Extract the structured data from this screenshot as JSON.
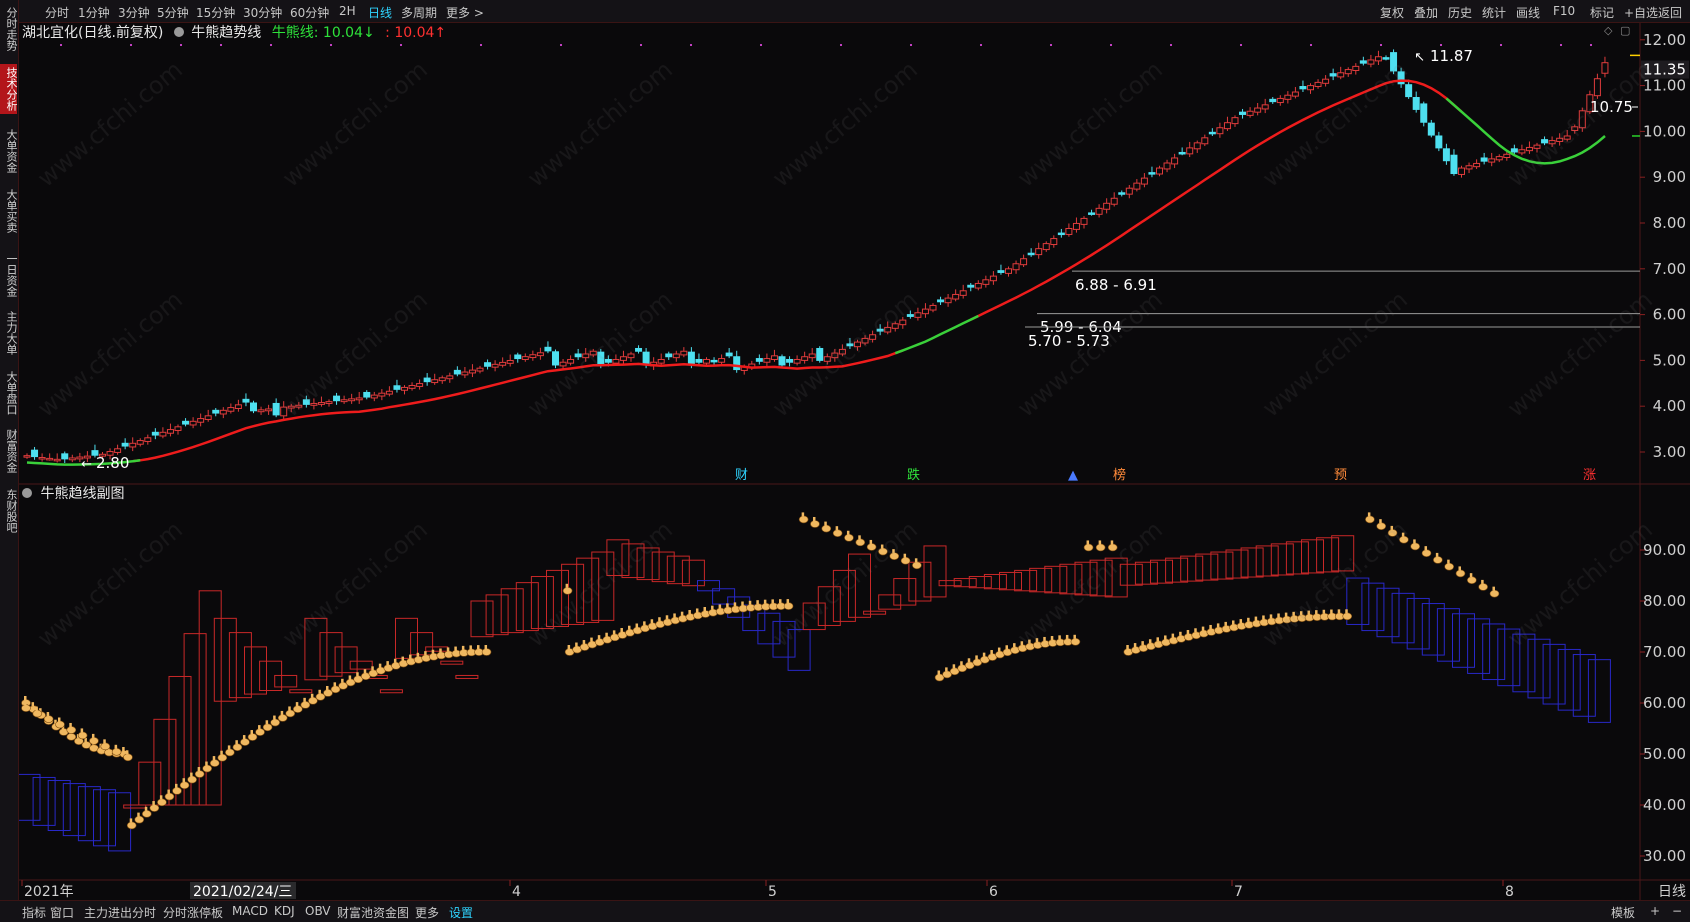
{
  "top_toolbar": {
    "periods": [
      "分时",
      "1分钟",
      "3分钟",
      "5分钟",
      "15分钟",
      "30分钟",
      "60分钟",
      "2H",
      "日线",
      "多周期",
      "更多 >"
    ],
    "active_period": "日线",
    "tools": [
      "复权",
      "叠加",
      "历史",
      "统计",
      "画线",
      "F10",
      "+自选",
      "返回"
    ],
    "mark_label": "标记"
  },
  "left_tabs": [
    "分时走势",
    "技术分析",
    "大单资金",
    "大单买卖",
    "一日资金",
    "主力大单",
    "大单盘口",
    "财富资金",
    "东财股吧"
  ],
  "main_chart": {
    "stock_title": "湖北宜化(日线.前复权)",
    "indicator_name": "牛熊趋势线",
    "bull_label": "牛熊线:",
    "bull_value": "10.04↓",
    "bear_value": ": 10.04↑",
    "price_axis": [
      "12.00",
      "11.00",
      "10.00",
      "9.00",
      "8.00",
      "7.00",
      "6.00",
      "5.00",
      "4.00",
      "3.00"
    ],
    "current_price": "11.35",
    "annotations": {
      "high": "11.87",
      "low": "2.80",
      "level_1075": "10.75",
      "gap1": "6.88 - 6.91",
      "gap2": "5.99 - 6.04",
      "gap3": "5.70 - 5.73"
    },
    "event_markers": [
      "财",
      "跌",
      "▲",
      "榜",
      "预",
      "涨"
    ]
  },
  "sub_chart": {
    "title": "牛熊趋线副图",
    "axis": [
      "90.00",
      "80.00",
      "70.00",
      "60.00",
      "50.00",
      "40.00",
      "30.00"
    ]
  },
  "date_axis": {
    "labels": [
      "2021年",
      "4",
      "5",
      "6",
      "7",
      "8"
    ],
    "cursor_date": "2021/02/24/三",
    "period": "日线"
  },
  "bottom_bar": {
    "items": [
      "指标",
      "窗口",
      "主力进出分时",
      "分时涨停板",
      "MACD",
      "KDJ",
      "OBV",
      "财富池资金图",
      "更多",
      "设置"
    ],
    "active_item": "设置",
    "right_label": "模板",
    "zoom_in": "+",
    "zoom_out": "−"
  },
  "watermark": "www.cfchi.com",
  "colors": {
    "up": "#e03c3c",
    "down": "#4ee0f0",
    "trend_red": "#ee1c1c",
    "trend_green": "#3ad03a",
    "accent": "#2fd4ff",
    "sub_up": "#c82828",
    "sub_down": "#2828c8",
    "hand": "#f0b860"
  }
}
